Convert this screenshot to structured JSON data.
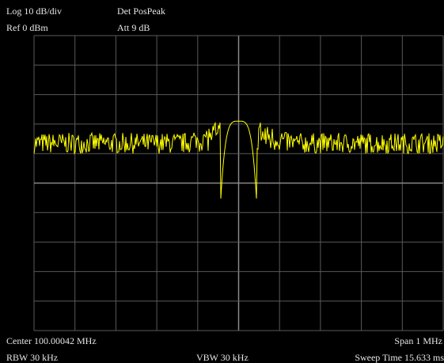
{
  "header": {
    "scale": "Log 10 dB/div",
    "reference_level": "Ref 0 dBm",
    "detector": "Det PosPeak",
    "attenuation": "Att 9 dB"
  },
  "footer": {
    "center_frequency": "Center 100.00042 MHz",
    "span": "Span 1 MHz",
    "rbw": "RBW 30 kHz",
    "vbw": "VBW 30 kHz",
    "sweep_time": "Sweep Time 15.633 ms"
  },
  "colors": {
    "background": "#000000",
    "grid": "#5a5a5a",
    "grid_center": "#8a8a8a",
    "trace": "#ffff00",
    "text": "#e6e6e6"
  },
  "chart_data": {
    "type": "line",
    "grid": true,
    "x_divisions": 10,
    "y_divisions": 10,
    "y_scale": "log",
    "ylim_db": [
      -100,
      0
    ],
    "xlim_mhz": [
      99.50042,
      100.50042
    ],
    "trace": {
      "noise_floor_db": [
        -40,
        -33
      ],
      "peak_db": -29,
      "peak_frequency_mhz": 100.00042,
      "signal_width_divisions": 0.9
    }
  }
}
